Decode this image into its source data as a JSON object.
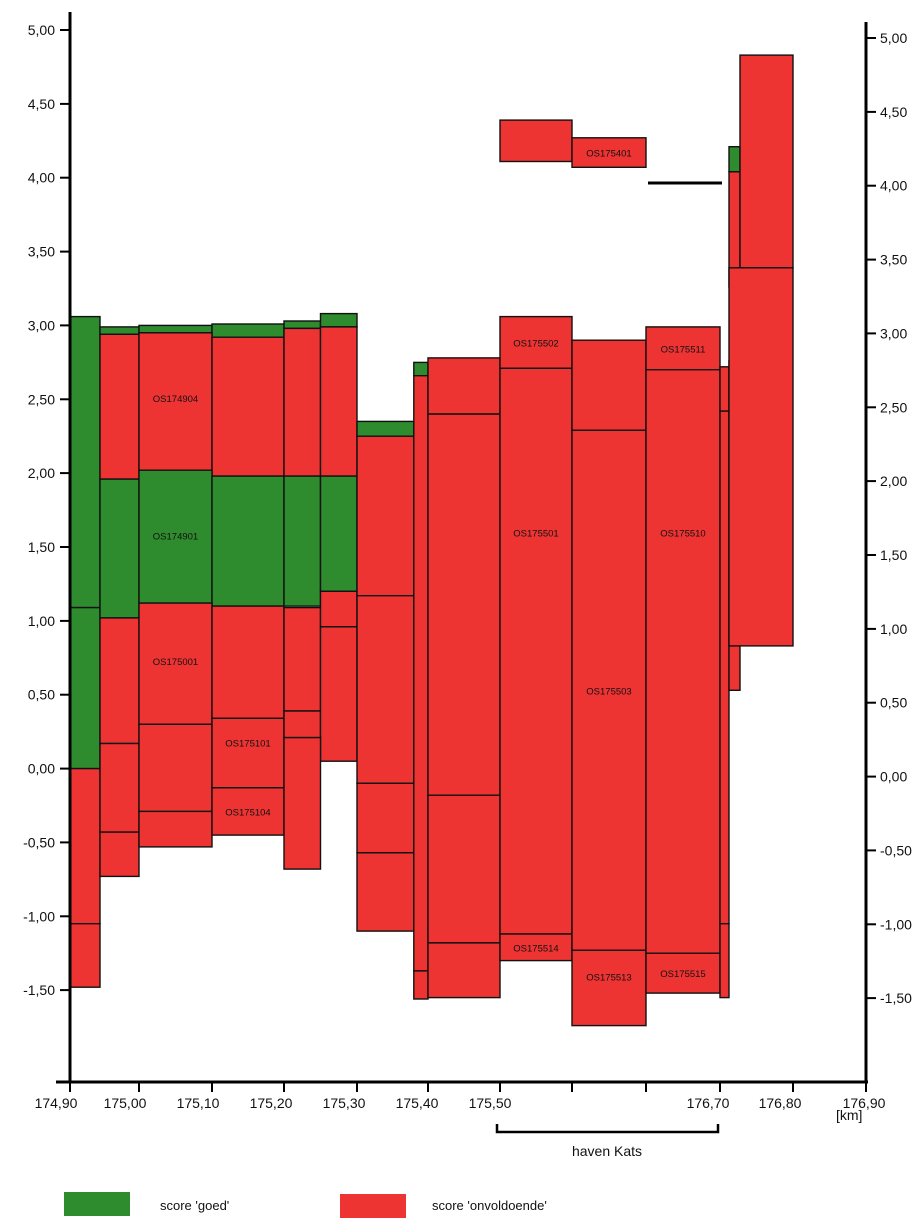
{
  "chart_data": {
    "type": "bar",
    "x_axis": {
      "range": [
        174.9,
        176.9
      ],
      "tick_labels": [
        "174,90",
        "175,00",
        "175,10",
        "175,20",
        "175,30",
        "175,40",
        "175,50",
        "176,70",
        "176,80",
        "176,90"
      ],
      "unit_label": "[km]"
    },
    "y_axis": {
      "range": [
        -2.0,
        5.0
      ],
      "tick_labels": [
        "5,00",
        "4,50",
        "4,00",
        "3,50",
        "3,00",
        "2,50",
        "2,00",
        "1,50",
        "1,00",
        "0,50",
        "0,00",
        "-0,50",
        "-1,00",
        "-1,50"
      ],
      "right_tick_labels": [
        "5,00",
        "4,50",
        "4,00",
        "3,50",
        "3,00",
        "2,50",
        "2,00",
        "1,50",
        "1,00",
        "0,50",
        "0,00",
        "-0,50",
        "-1,00",
        "-1,50"
      ]
    },
    "annotation": {
      "label": "haven Kats"
    },
    "legend": [
      {
        "label": "score 'goed'",
        "color": "#2e8b2e"
      },
      {
        "label": "score 'onvoldoende'",
        "color": "#ee3333"
      }
    ],
    "segments": [
      {
        "x0": 174.9,
        "x1": 174.95,
        "y0": 1.09,
        "y1": 3.06,
        "s": "g"
      },
      {
        "x0": 174.9,
        "x1": 174.95,
        "y0": 0.0,
        "y1": 1.09,
        "s": "g"
      },
      {
        "x0": 174.9,
        "x1": 174.95,
        "y0": -1.05,
        "y1": 0.0,
        "s": "r"
      },
      {
        "x0": 174.9,
        "x1": 174.95,
        "y0": -1.48,
        "y1": -1.05,
        "s": "r"
      },
      {
        "x0": 174.95,
        "x1": 175.0,
        "y0": 2.94,
        "y1": 2.99,
        "s": "g"
      },
      {
        "x0": 175.0,
        "x1": 175.1,
        "y0": 2.95,
        "y1": 3.0,
        "s": "g"
      },
      {
        "x0": 175.1,
        "x1": 175.2,
        "y0": 2.92,
        "y1": 3.01,
        "s": "g"
      },
      {
        "x0": 175.2,
        "x1": 175.25,
        "y0": 2.98,
        "y1": 3.03,
        "s": "g"
      },
      {
        "x0": 175.25,
        "x1": 175.3,
        "y0": 2.99,
        "y1": 3.08,
        "s": "g"
      },
      {
        "x0": 174.95,
        "x1": 175.0,
        "y0": 1.96,
        "y1": 2.94,
        "s": "r"
      },
      {
        "x0": 175.0,
        "x1": 175.1,
        "y0": 2.02,
        "y1": 2.95,
        "s": "r",
        "label": "OS174904"
      },
      {
        "x0": 175.1,
        "x1": 175.2,
        "y0": 1.98,
        "y1": 2.92,
        "s": "r"
      },
      {
        "x0": 175.2,
        "x1": 175.25,
        "y0": 1.98,
        "y1": 2.98,
        "s": "r"
      },
      {
        "x0": 175.25,
        "x1": 175.3,
        "y0": 1.98,
        "y1": 2.99,
        "s": "r"
      },
      {
        "x0": 174.95,
        "x1": 175.0,
        "y0": 1.02,
        "y1": 1.96,
        "s": "g"
      },
      {
        "x0": 175.0,
        "x1": 175.1,
        "y0": 1.12,
        "y1": 2.02,
        "s": "g",
        "label": "OS174901"
      },
      {
        "x0": 175.1,
        "x1": 175.2,
        "y0": 1.1,
        "y1": 1.98,
        "s": "g"
      },
      {
        "x0": 175.2,
        "x1": 175.25,
        "y0": 1.1,
        "y1": 1.98,
        "s": "g"
      },
      {
        "x0": 175.25,
        "x1": 175.3,
        "y0": 1.2,
        "y1": 1.98,
        "s": "g"
      },
      {
        "x0": 174.95,
        "x1": 175.0,
        "y0": 0.17,
        "y1": 1.02,
        "s": "r"
      },
      {
        "x0": 175.0,
        "x1": 175.1,
        "y0": 0.3,
        "y1": 1.12,
        "s": "r",
        "label": "OS175001"
      },
      {
        "x0": 175.1,
        "x1": 175.2,
        "y0": 0.34,
        "y1": 1.1,
        "s": "r"
      },
      {
        "x0": 175.2,
        "x1": 175.25,
        "y0": 0.39,
        "y1": 1.09,
        "s": "r"
      },
      {
        "x0": 175.25,
        "x1": 175.3,
        "y0": 0.96,
        "y1": 1.2,
        "s": "r"
      },
      {
        "x0": 174.95,
        "x1": 175.0,
        "y0": -0.43,
        "y1": 0.17,
        "s": "r"
      },
      {
        "x0": 175.0,
        "x1": 175.1,
        "y0": -0.29,
        "y1": 0.3,
        "s": "r"
      },
      {
        "x0": 175.1,
        "x1": 175.2,
        "y0": -0.13,
        "y1": 0.34,
        "s": "r",
        "label": "OS175101"
      },
      {
        "x0": 175.2,
        "x1": 175.25,
        "y0": 0.21,
        "y1": 0.39,
        "s": "r"
      },
      {
        "x0": 175.25,
        "x1": 175.3,
        "y0": 0.05,
        "y1": 0.96,
        "s": "r"
      },
      {
        "x0": 174.95,
        "x1": 175.0,
        "y0": -0.73,
        "y1": -0.43,
        "s": "r"
      },
      {
        "x0": 175.0,
        "x1": 175.1,
        "y0": -0.53,
        "y1": -0.29,
        "s": "r"
      },
      {
        "x0": 175.1,
        "x1": 175.2,
        "y0": -0.45,
        "y1": -0.13,
        "s": "r",
        "label": "OS175104"
      },
      {
        "x0": 175.2,
        "x1": 175.25,
        "y0": -0.68,
        "y1": 0.21,
        "s": "r"
      },
      {
        "x0": 175.3,
        "x1": 175.38,
        "y0": 2.25,
        "y1": 2.35,
        "s": "g"
      },
      {
        "x0": 175.3,
        "x1": 175.38,
        "y0": 1.17,
        "y1": 2.25,
        "s": "r"
      },
      {
        "x0": 175.3,
        "x1": 175.38,
        "y0": -0.1,
        "y1": 1.17,
        "s": "r"
      },
      {
        "x0": 175.3,
        "x1": 175.38,
        "y0": -0.57,
        "y1": -0.1,
        "s": "r"
      },
      {
        "x0": 175.3,
        "x1": 175.38,
        "y0": -1.1,
        "y1": -0.57,
        "s": "r"
      },
      {
        "x0": 175.38,
        "x1": 175.4,
        "y0": 2.66,
        "y1": 2.75,
        "s": "g"
      },
      {
        "x0": 175.38,
        "x1": 175.4,
        "y0": -1.37,
        "y1": 2.66,
        "s": "r"
      },
      {
        "x0": 175.38,
        "x1": 175.4,
        "y0": -1.56,
        "y1": -1.37,
        "s": "r"
      },
      {
        "x0": 175.4,
        "x1": 175.5,
        "y0": 2.4,
        "y1": 2.78,
        "s": "r"
      },
      {
        "x0": 175.4,
        "x1": 175.5,
        "y0": -0.18,
        "y1": 2.4,
        "s": "r"
      },
      {
        "x0": 175.4,
        "x1": 175.5,
        "y0": -1.18,
        "y1": -0.18,
        "s": "r"
      },
      {
        "x0": 175.4,
        "x1": 175.5,
        "y0": -1.55,
        "y1": -1.18,
        "s": "r"
      },
      {
        "x0": 175.5,
        "x1": 175.6,
        "y0": 2.71,
        "y1": 3.06,
        "s": "r",
        "label": "OS175502"
      },
      {
        "x0": 175.5,
        "x1": 175.6,
        "y0": -1.12,
        "y1": 2.71,
        "s": "r",
        "label": "OS175501"
      },
      {
        "x0": 175.5,
        "x1": 175.6,
        "y0": -1.3,
        "y1": -1.12,
        "s": "r",
        "label": "OS175514"
      },
      {
        "x0": 175.6,
        "x1": 175.7,
        "y0": 2.29,
        "y1": 2.9,
        "s": "r"
      },
      {
        "x0": 175.6,
        "x1": 175.7,
        "y0": -1.23,
        "y1": 2.29,
        "s": "r",
        "label": "OS175503"
      },
      {
        "x0": 175.6,
        "x1": 175.7,
        "y0": -1.74,
        "y1": -1.23,
        "s": "r",
        "label": "OS175513"
      },
      {
        "x0": 175.7,
        "x1": 175.8,
        "y0": 2.7,
        "y1": 2.99,
        "s": "r",
        "label": "OS175511"
      },
      {
        "x0": 175.7,
        "x1": 175.8,
        "y0": -1.25,
        "y1": 2.7,
        "s": "r",
        "label": "OS175510"
      },
      {
        "x0": 175.7,
        "x1": 175.8,
        "y0": -1.52,
        "y1": -1.25,
        "s": "r",
        "label": "OS175515"
      },
      {
        "x0": 175.8,
        "x1": 175.81,
        "y0": 2.42,
        "y1": 2.72,
        "s": "r"
      },
      {
        "x0": 175.8,
        "x1": 175.81,
        "y0": -1.05,
        "y1": 2.42,
        "s": "r"
      },
      {
        "x0": 175.8,
        "x1": 175.81,
        "y0": -1.55,
        "y1": -1.05,
        "s": "r"
      },
      {
        "x0": 175.81,
        "x1": 175.83,
        "y0": 1.76,
        "y1": 2.76,
        "s": "r"
      },
      {
        "x0": 175.81,
        "x1": 175.83,
        "y0": 0.53,
        "y1": 1.76,
        "s": "r"
      },
      {
        "x0": 175.81,
        "x1": 175.83,
        "y0": 4.04,
        "y1": 4.21,
        "s": "g"
      },
      {
        "x0": 175.81,
        "x1": 175.83,
        "y0": 3.26,
        "y1": 4.04,
        "s": "r"
      },
      {
        "x0": 175.83,
        "x1": 175.9,
        "y0": 3.39,
        "y1": 4.83,
        "s": "r"
      },
      {
        "x0": 175.81,
        "x1": 175.9,
        "y0": 0.83,
        "y1": 3.39,
        "s": "r"
      },
      {
        "x0": 175.5,
        "x1": 175.6,
        "y0": 4.11,
        "y1": 4.39,
        "s": "r"
      },
      {
        "x0": 175.6,
        "x1": 175.7,
        "y0": 4.07,
        "y1": 4.27,
        "s": "r",
        "label": "OS175401"
      }
    ]
  }
}
